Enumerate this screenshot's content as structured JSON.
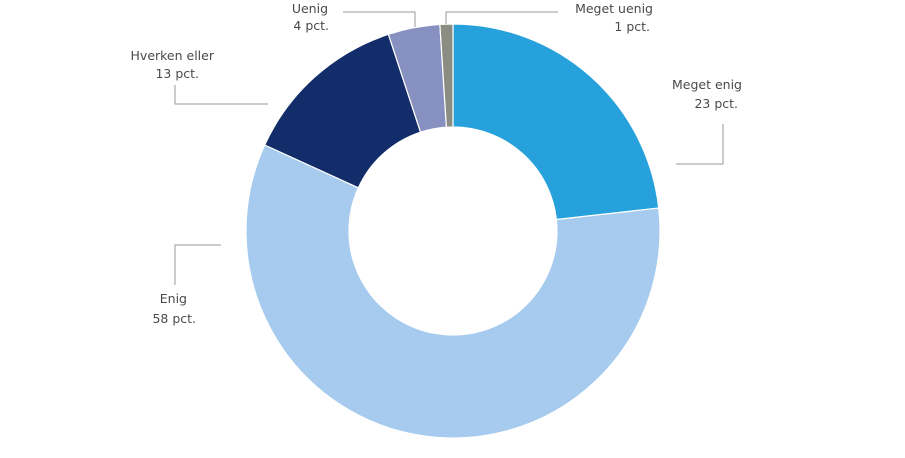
{
  "chart_data": {
    "type": "pie",
    "variant": "donut",
    "title": "",
    "categories": [
      "Meget enig",
      "Enig",
      "Hverken eller",
      "Uenig",
      "Meget uenig"
    ],
    "values": [
      23,
      58,
      13,
      4,
      1
    ],
    "value_labels": [
      "23 pct.",
      "58 pct.",
      "13 pct.",
      "4 pct.",
      "1 pct."
    ],
    "colors": [
      "#27a1db",
      "#a6cbee",
      "#122d69",
      "#8791c1",
      "#8c8d82"
    ],
    "legend": "none"
  }
}
